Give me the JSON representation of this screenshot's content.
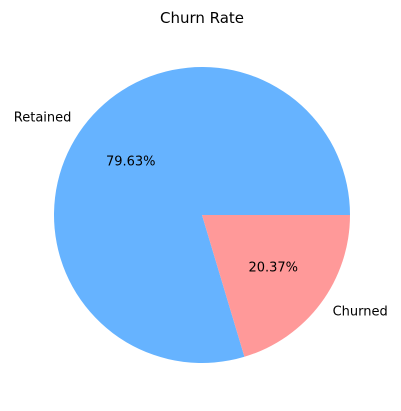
{
  "chart_data": {
    "type": "pie",
    "title": "Churn Rate",
    "categories": [
      "Retained",
      "Churned"
    ],
    "values": [
      79.63,
      20.37
    ],
    "percent_labels": [
      "79.63%",
      "20.37%"
    ],
    "colors": [
      "#66b3ff",
      "#ff9999"
    ],
    "start_angle_deg": 0,
    "direction": "counterclockwise",
    "legend": "none"
  }
}
